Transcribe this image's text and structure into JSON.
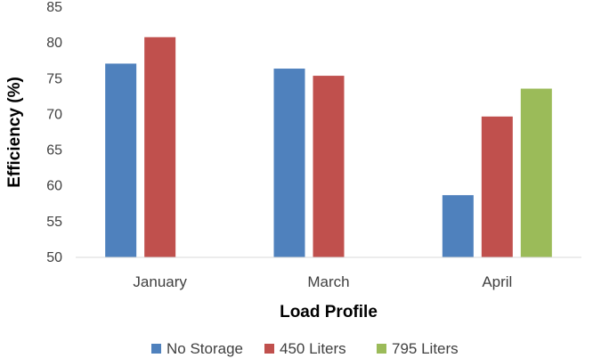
{
  "chart_data": {
    "type": "bar",
    "categories": [
      "January",
      "March",
      "April"
    ],
    "series": [
      {
        "name": "No Storage",
        "color": "#4f81bd",
        "values": [
          77.1,
          76.4,
          58.7
        ]
      },
      {
        "name": "450 Liters",
        "color": "#c0504d",
        "values": [
          80.8,
          75.4,
          69.7
        ]
      },
      {
        "name": "795 Liters",
        "color": "#9bbb59",
        "values": [
          null,
          null,
          73.6
        ]
      }
    ],
    "xlabel": "Load Profile",
    "ylabel": "Efficiency (%)",
    "ylim": [
      50,
      85
    ],
    "yticks": [
      50,
      55,
      60,
      65,
      70,
      75,
      80,
      85
    ],
    "grid": false,
    "legend_position": "bottom"
  }
}
